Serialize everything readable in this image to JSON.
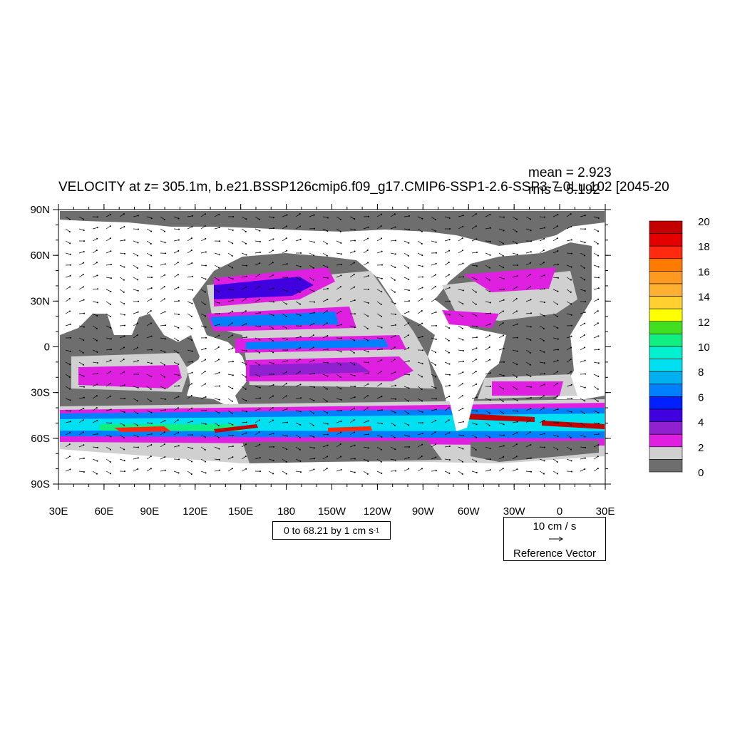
{
  "title": "VELOCITY at z= 305.1m, b.e21.BSSP126cmip6.f09_g17.CMIP6-SSP1-2.6-SSP3-7.0Lu.102 [2045-20",
  "stats": {
    "mean": "mean = 2.923",
    "rms": "rms = 5.192"
  },
  "range_label": "0 to 68.21 by 1 cm s",
  "range_sup": "-1",
  "reference_vector": {
    "magnitude": "10 cm / s",
    "label": "Reference Vector"
  },
  "axes": {
    "lat_ticks": [
      "90N",
      "60N",
      "30N",
      "0",
      "30S",
      "60S",
      "90S"
    ],
    "lon_ticks": [
      "30E",
      "60E",
      "90E",
      "120E",
      "150E",
      "180",
      "150W",
      "120W",
      "90W",
      "60W",
      "30W",
      "0",
      "30E"
    ]
  },
  "colorbar": {
    "labels": [
      "20",
      "18",
      "16",
      "14",
      "12",
      "10",
      "8",
      "6",
      "4",
      "2",
      "0"
    ],
    "colors": [
      "#c40000",
      "#e40000",
      "#ff2a10",
      "#ff7a00",
      "#ff9a20",
      "#ffb030",
      "#ffd030",
      "#ffff00",
      "#40e020",
      "#10f080",
      "#00f0d0",
      "#00e0f0",
      "#00b0f0",
      "#0080ff",
      "#0020ff",
      "#4000e0",
      "#9020d0",
      "#e020e0",
      "#d0d0d0",
      "#6e6e6e"
    ]
  }
}
